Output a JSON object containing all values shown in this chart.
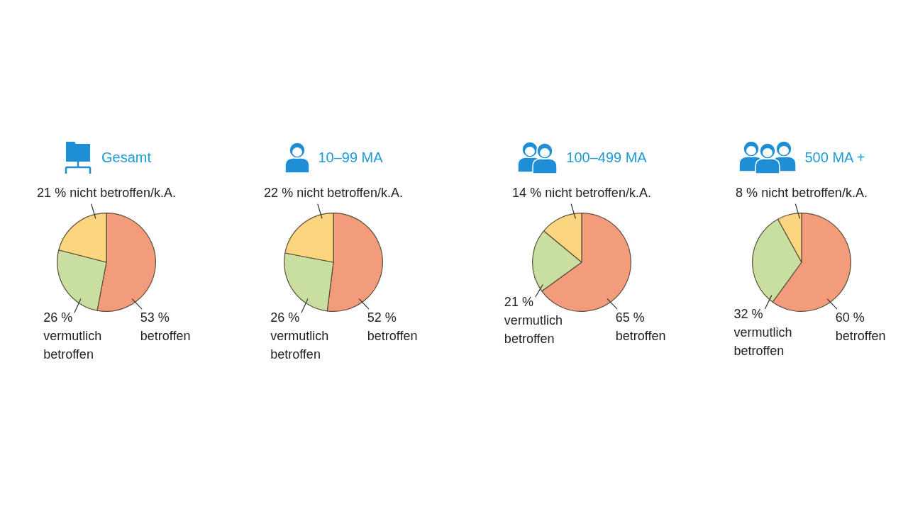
{
  "chart_data": [
    {
      "type": "pie",
      "title": "Gesamt",
      "categories": [
        "betroffen",
        "vermutlich betroffen",
        "nicht betroffen/k.A."
      ],
      "values": [
        53,
        26,
        21
      ],
      "value_labels": [
        "53 %",
        "26 %",
        "21 %"
      ],
      "colors": [
        "#f29c7c",
        "#c9dfa1",
        "#fcd67f"
      ]
    },
    {
      "type": "pie",
      "title": "10–99 MA",
      "categories": [
        "betroffen",
        "vermutlich betroffen",
        "nicht betroffen/k.A."
      ],
      "values": [
        52,
        26,
        22
      ],
      "value_labels": [
        "52 %",
        "26 %",
        "22 %"
      ],
      "colors": [
        "#f29c7c",
        "#c9dfa1",
        "#fcd67f"
      ]
    },
    {
      "type": "pie",
      "title": "100–499 MA",
      "categories": [
        "betroffen",
        "vermutlich betroffen",
        "nicht betroffen/k.A."
      ],
      "values": [
        65,
        21,
        14
      ],
      "value_labels": [
        "65 %",
        "21 %",
        "14 %"
      ],
      "colors": [
        "#f29c7c",
        "#c9dfa1",
        "#fcd67f"
      ]
    },
    {
      "type": "pie",
      "title": "500 MA +",
      "categories": [
        "betroffen",
        "vermutlich betroffen",
        "nicht betroffen/k.A."
      ],
      "values": [
        60,
        32,
        8
      ],
      "value_labels": [
        "60 %",
        "32 %",
        "8 %"
      ],
      "colors": [
        "#f29c7c",
        "#c9dfa1",
        "#fcd67f"
      ]
    }
  ]
}
